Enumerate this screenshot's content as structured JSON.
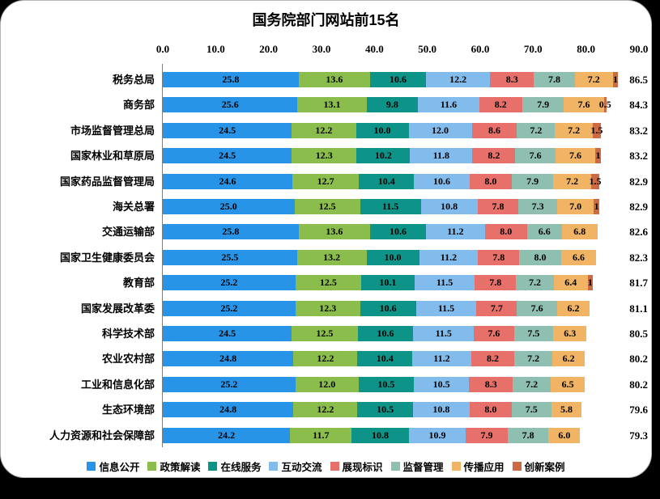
{
  "title": "国务院部门网站前15名",
  "x_axis": {
    "tick_labels": [
      "0.0",
      "10.0",
      "20.0",
      "30.0",
      "40.0",
      "50.0",
      "60.0",
      "70.0",
      "80.0",
      "90.0"
    ],
    "min": 0,
    "max": 90
  },
  "chart_data": {
    "type": "bar",
    "orientation": "horizontal",
    "stacked": true,
    "title": "国务院部门网站前15名",
    "xlim": [
      0,
      90
    ],
    "x_ticks": [
      0,
      10,
      20,
      30,
      40,
      50,
      60,
      70,
      80,
      90
    ],
    "grid": false,
    "legend_position": "bottom",
    "categories": [
      "税务总局",
      "商务部",
      "市场监督管理总局",
      "国家林业和草原局",
      "国家药品监督管理局",
      "海关总署",
      "交通运输部",
      "国家卫生健康委员会",
      "教育部",
      "国家发展改革委",
      "科学技术部",
      "农业农村部",
      "工业和信息化部",
      "生态环境部",
      "人力资源和社会保障部"
    ],
    "totals": [
      86.5,
      84.3,
      83.2,
      83.2,
      82.9,
      82.9,
      82.6,
      82.3,
      81.7,
      81.1,
      80.5,
      80.2,
      80.2,
      79.6,
      79.3
    ],
    "total_labels": [
      "86.5",
      "84.3",
      "83.2",
      "83.2",
      "82.9",
      "82.9",
      "82.6",
      "82.3",
      "81.7",
      "81.1",
      "80.5",
      "80.2",
      "80.2",
      "79.6",
      "79.3"
    ],
    "series": [
      {
        "name": "信息公开",
        "color": "#2894E8",
        "values": [
          25.8,
          25.6,
          24.5,
          24.5,
          24.6,
          25.0,
          25.8,
          25.5,
          25.2,
          25.2,
          24.5,
          24.8,
          25.2,
          24.8,
          24.2
        ],
        "labels": [
          "25.8",
          "25.6",
          "24.5",
          "24.5",
          "24.6",
          "25.0",
          "25.8",
          "25.5",
          "25.2",
          "25.2",
          "24.5",
          "24.8",
          "25.2",
          "24.8",
          "24.2"
        ]
      },
      {
        "name": "政策解读",
        "color": "#8ABD4B",
        "values": [
          13.6,
          13.1,
          12.2,
          12.3,
          12.7,
          12.5,
          13.6,
          13.2,
          12.5,
          12.3,
          12.5,
          12.2,
          12.0,
          12.2,
          11.7
        ],
        "labels": [
          "13.6",
          "13.1",
          "12.2",
          "12.3",
          "12.7",
          "12.5",
          "13.6",
          "13.2",
          "12.5",
          "12.3",
          "12.5",
          "12.2",
          "12.0",
          "12.2",
          "11.7"
        ]
      },
      {
        "name": "在线服务",
        "color": "#0D9387",
        "values": [
          10.6,
          9.8,
          10.0,
          10.2,
          10.4,
          11.5,
          10.6,
          10.0,
          10.1,
          10.6,
          10.6,
          10.4,
          10.5,
          10.5,
          10.8
        ],
        "labels": [
          "10.6",
          "9.8",
          "10.0",
          "10.2",
          "10.4",
          "11.5",
          "10.6",
          "10.0",
          "10.1",
          "10.6",
          "10.6",
          "10.4",
          "10.5",
          "10.5",
          "10.8"
        ]
      },
      {
        "name": "互动交流",
        "color": "#82BCEC",
        "values": [
          12.2,
          11.6,
          12.0,
          11.8,
          10.6,
          10.8,
          11.2,
          11.2,
          11.5,
          11.5,
          11.5,
          11.2,
          10.5,
          10.8,
          10.9
        ],
        "labels": [
          "12.2",
          "11.6",
          "12.0",
          "11.8",
          "10.6",
          "10.8",
          "11.2",
          "11.2",
          "11.5",
          "11.5",
          "11.5",
          "11.2",
          "10.5",
          "10.8",
          "10.9"
        ]
      },
      {
        "name": "展现标识",
        "color": "#E7706B",
        "values": [
          8.3,
          8.2,
          8.6,
          8.2,
          8.0,
          7.8,
          8.0,
          7.8,
          7.8,
          7.7,
          7.6,
          8.2,
          8.3,
          8.0,
          7.9
        ],
        "labels": [
          "8.3",
          "8.2",
          "8.6",
          "8.2",
          "8.0",
          "7.8",
          "8.0",
          "7.8",
          "7.8",
          "7.7",
          "7.6",
          "8.2",
          "8.3",
          "8.0",
          "7.9"
        ]
      },
      {
        "name": "监督管理",
        "color": "#8FBFB0",
        "values": [
          7.8,
          7.9,
          7.2,
          7.6,
          7.9,
          7.3,
          6.6,
          8.0,
          7.2,
          7.6,
          7.5,
          7.2,
          7.2,
          7.5,
          7.8
        ],
        "labels": [
          "7.8",
          "7.9",
          "7.2",
          "7.6",
          "7.9",
          "7.3",
          "6.6",
          "8.0",
          "7.2",
          "7.6",
          "7.5",
          "7.2",
          "7.2",
          "7.5",
          "7.8"
        ]
      },
      {
        "name": "传播应用",
        "color": "#F0B464",
        "values": [
          7.2,
          7.6,
          7.2,
          7.6,
          7.2,
          7.0,
          6.8,
          6.6,
          6.4,
          6.2,
          6.3,
          6.2,
          6.5,
          5.8,
          6.0
        ],
        "labels": [
          "7.2",
          "7.6",
          "7.2",
          "7.6",
          "7.2",
          "7.0",
          "6.8",
          "6.6",
          "6.4",
          "6.2",
          "6.3",
          "6.2",
          "6.5",
          "5.8",
          "6.0"
        ]
      },
      {
        "name": "创新案例",
        "color": "#CC6A44",
        "values": [
          1.0,
          0.5,
          1.5,
          1.0,
          1.5,
          1.0,
          0,
          0,
          1.0,
          0,
          0,
          0,
          0,
          0,
          0
        ],
        "labels": [
          "1",
          "0.5",
          "1.5",
          "1",
          "1.5",
          "1",
          "",
          "",
          "1",
          "",
          "",
          "",
          "",
          "",
          ""
        ]
      }
    ]
  }
}
